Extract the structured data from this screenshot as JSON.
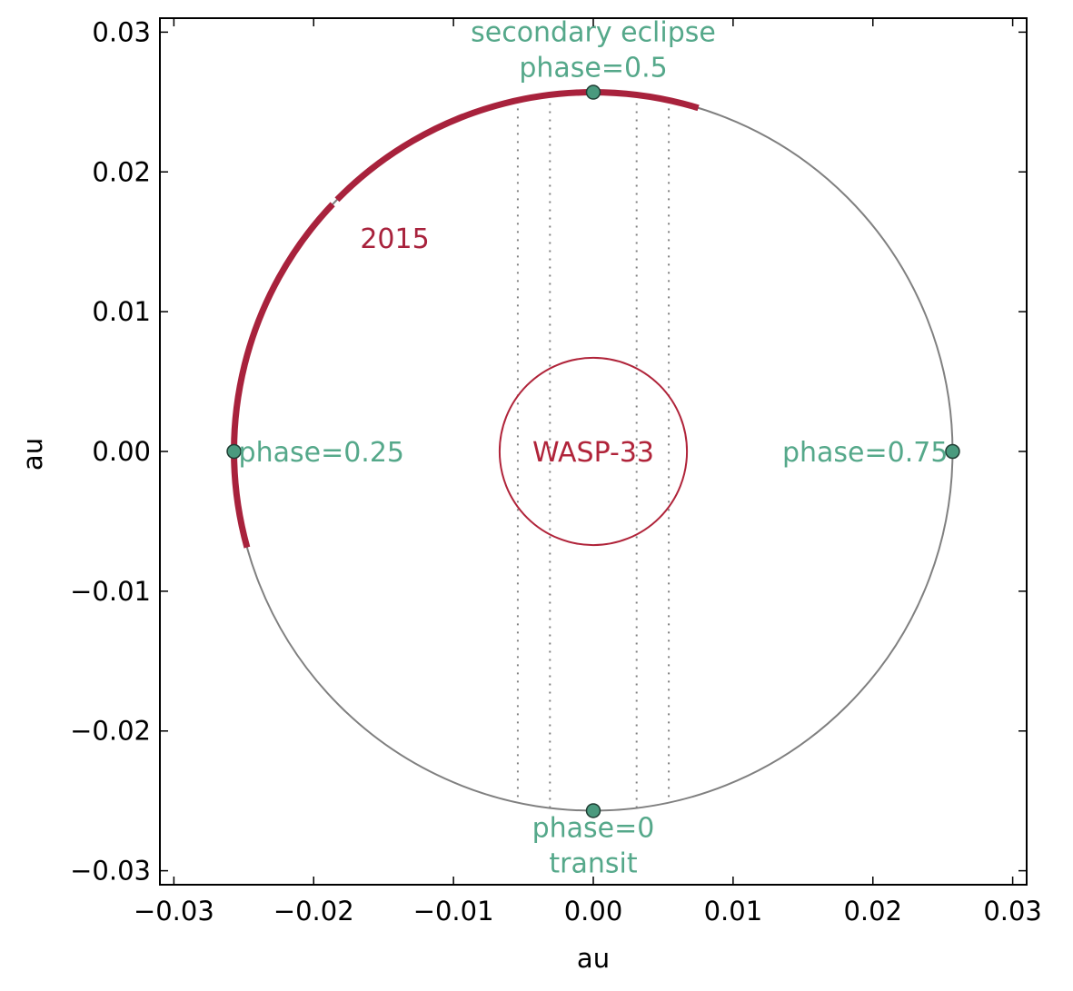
{
  "chart_data": {
    "type": "scatter",
    "title": "",
    "xlabel": "au",
    "ylabel": "au",
    "xlim": [
      -0.031,
      0.031
    ],
    "ylim": [
      -0.031,
      0.031
    ],
    "xticks": [
      -0.03,
      -0.02,
      -0.01,
      0.0,
      0.01,
      0.02,
      0.03
    ],
    "yticks": [
      -0.03,
      -0.02,
      -0.01,
      0.0,
      0.01,
      0.02,
      0.03
    ],
    "xtick_labels": [
      "−0.03",
      "−0.02",
      "−0.01",
      "0.00",
      "0.01",
      "0.02",
      "0.03"
    ],
    "ytick_labels": [
      "−0.03",
      "−0.02",
      "−0.01",
      "0.00",
      "0.01",
      "0.02",
      "0.03"
    ],
    "grid": false,
    "colors": {
      "orbit": "#808080",
      "star": "#b0243a",
      "observed": "#a8223c",
      "phase_marker": "#4a9a7e",
      "phase_text": "#55a88a",
      "dotted": "#808080"
    },
    "orbit": {
      "center": [
        0.0,
        0.0
      ],
      "radius": 0.0257
    },
    "star": {
      "name": "WASP-33",
      "center": [
        0.0,
        0.0
      ],
      "radius": 0.0067
    },
    "observed_arcs": {
      "label": "2015",
      "label_position": [
        -0.0142,
        0.0152
      ],
      "segments_deg": [
        [
          73,
          135.5
        ],
        [
          136.5,
          195.5
        ]
      ]
    },
    "dotted_lines_x": [
      -0.0054,
      -0.0031,
      0.0031,
      0.0054
    ],
    "phase_points": [
      {
        "name": "phase-0",
        "x": 0.0,
        "y": -0.0257
      },
      {
        "name": "phase-0.25",
        "x": -0.0257,
        "y": 0.0
      },
      {
        "name": "phase-0.5",
        "x": 0.0,
        "y": 0.0257
      },
      {
        "name": "phase-0.75",
        "x": 0.0257,
        "y": 0.0
      }
    ],
    "annotations": [
      {
        "name": "secondary-eclipse-label",
        "lines": [
          "secondary eclipse",
          "phase=0.5"
        ],
        "x": 0.0,
        "y": 0.0257,
        "anchor": "middle",
        "dir": "above"
      },
      {
        "name": "transit-label",
        "lines": [
          "phase=0",
          "transit"
        ],
        "x": 0.0,
        "y": -0.0257,
        "anchor": "middle",
        "dir": "below"
      },
      {
        "name": "phase-025-label",
        "lines": [
          "phase=0.25"
        ],
        "x": -0.0257,
        "y": 0.0,
        "anchor": "start",
        "dir": "center"
      },
      {
        "name": "phase-075-label",
        "lines": [
          "phase=0.75"
        ],
        "x": 0.0257,
        "y": 0.0,
        "anchor": "end",
        "dir": "center"
      }
    ]
  }
}
